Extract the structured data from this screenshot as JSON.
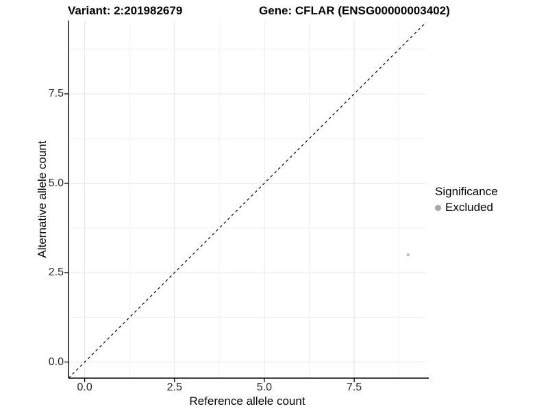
{
  "header": {
    "variant_title": "Variant: 2:201982679",
    "gene_title": "Gene: CFLAR (ENSG00000003402)"
  },
  "chart_data": {
    "type": "scatter",
    "xlabel": "Reference allele count",
    "ylabel": "Alternative allele count",
    "xlim": [
      -0.45,
      9.5
    ],
    "ylim": [
      -0.45,
      9.55
    ],
    "x_ticks": [
      0.0,
      2.5,
      5.0,
      7.5
    ],
    "y_ticks": [
      0.0,
      2.5,
      5.0,
      7.5
    ],
    "x_tick_labels": [
      "0.0",
      "2.5",
      "5.0",
      "7.5"
    ],
    "y_tick_labels": [
      "0.0",
      "2.5",
      "5.0",
      "7.5"
    ],
    "minor_gridlines": [
      1.25,
      3.75,
      6.25,
      8.75
    ],
    "grid": true,
    "reference_line": {
      "equation": "y = x",
      "style": "dashed",
      "color": "#000000"
    },
    "series": [
      {
        "name": "Excluded",
        "color": "#bfbfbf",
        "point_radius": 2.3,
        "points": [
          [
            9,
            3
          ]
        ]
      }
    ],
    "legend": {
      "position": "right",
      "title": "Significance",
      "items": [
        {
          "label": "Excluded",
          "color": "#a6a6a6"
        }
      ]
    },
    "colors": {
      "background": "#ffffff",
      "grid_major": "#e8e8e8",
      "grid_minor": "#f1f1f1",
      "axis_line": "#000000",
      "tick_label": "#262626"
    }
  }
}
